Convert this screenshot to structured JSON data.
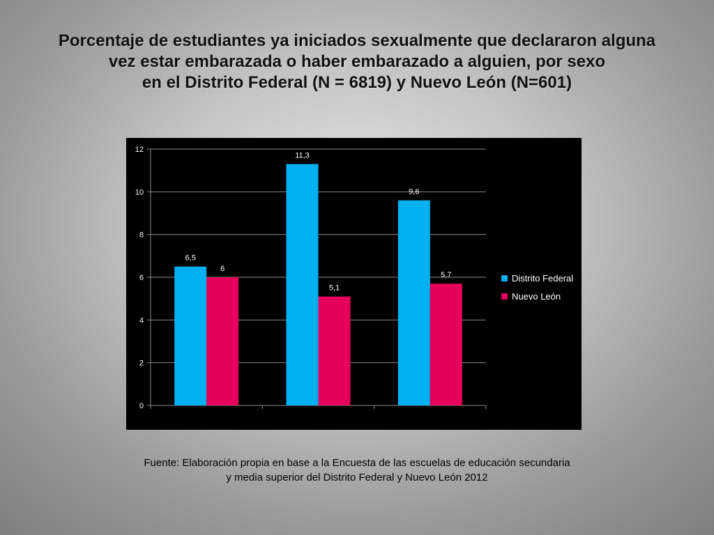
{
  "slide": {
    "title_lines": [
      "Porcentaje de estudiantes ya iniciados sexualmente que declararon alguna",
      "vez estar embarazada o haber embarazado a alguien, por sexo",
      "en el Distrito Federal (N = 6819) y Nuevo León (N=601)"
    ],
    "source_lines": [
      "Fuente: Elaboración propia en base a la Encuesta de las escuelas de educación secundaria",
      "y media superior del Distrito Federal y Nuevo León  2012"
    ]
  },
  "chart_data": {
    "type": "bar",
    "categories": [
      "",
      "",
      ""
    ],
    "series": [
      {
        "name": "Distrito Federal",
        "values": [
          6.5,
          11.3,
          9.6
        ],
        "labels": [
          "6,5",
          "11,3",
          "9,6"
        ],
        "color": "#00B0F0"
      },
      {
        "name": "Nuevo León",
        "values": [
          6,
          5.1,
          5.7
        ],
        "labels": [
          "6",
          "5,1",
          "5,7"
        ],
        "color": "#E6005C"
      }
    ],
    "ylim": [
      0,
      12
    ],
    "yticks": [
      0,
      2,
      4,
      6,
      8,
      10,
      12
    ],
    "grid": true,
    "legend": "right",
    "background": "#000000",
    "text_color": "#FFFFFF"
  }
}
